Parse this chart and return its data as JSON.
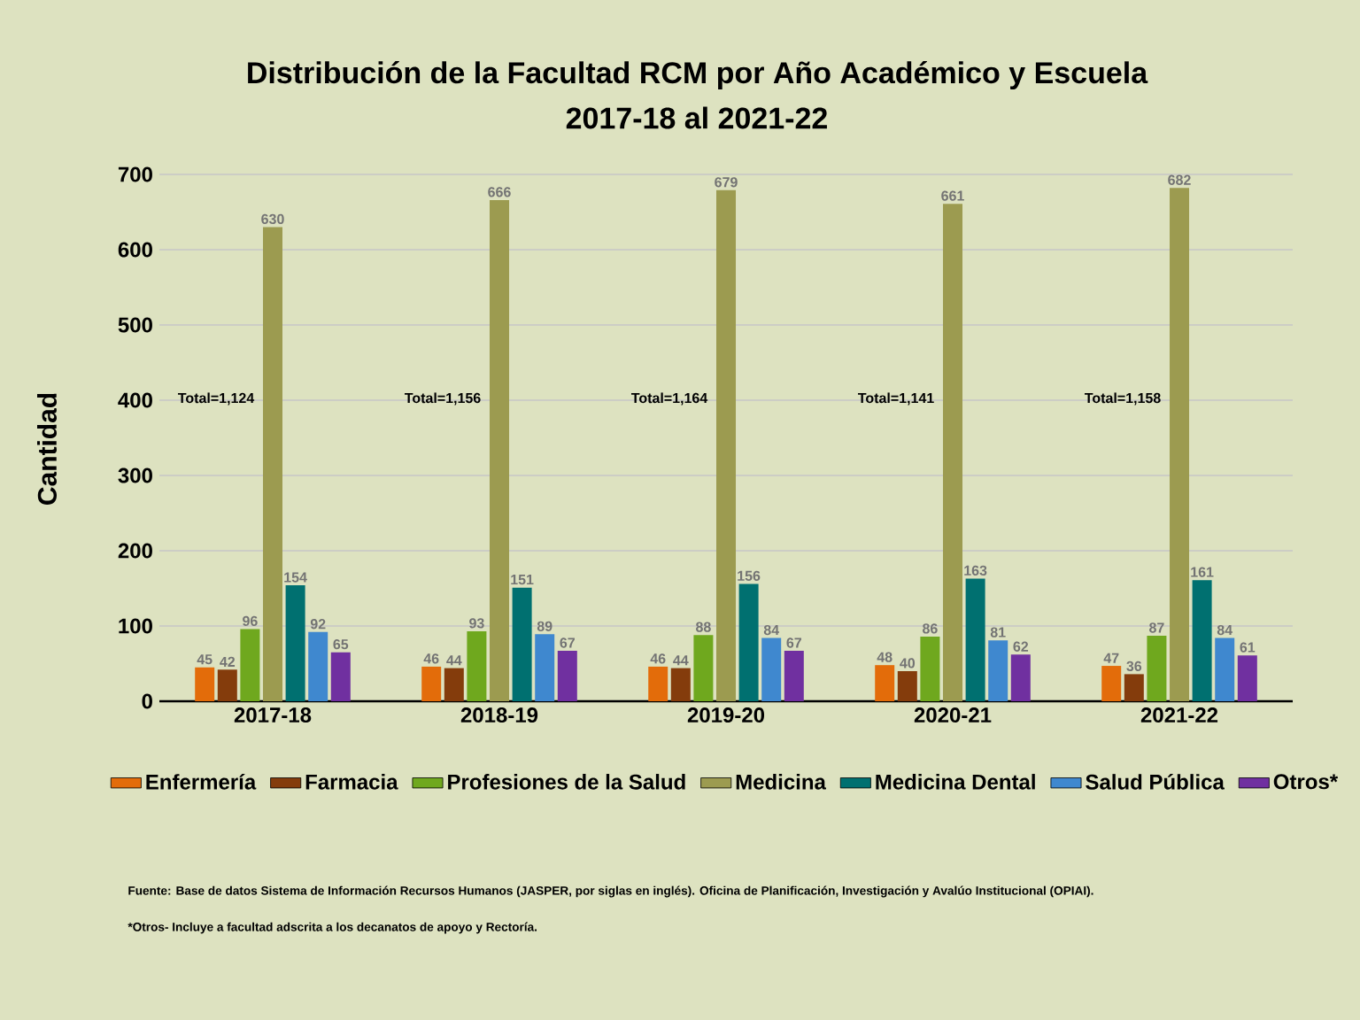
{
  "chart_data": {
    "type": "bar",
    "title": "Distribución de la Facultad RCM por Año Académico y Escuela",
    "subtitle": "2017-18 al 2021-22",
    "ylabel": "Cantidad",
    "categories": [
      "2017-18",
      "2018-19",
      "2019-20",
      "2020-21",
      "2021-22"
    ],
    "series": [
      {
        "name": "Enfermería",
        "color": "#e36c0a",
        "values": [
          45,
          46,
          46,
          48,
          47
        ]
      },
      {
        "name": "Farmacia",
        "color": "#843c0c",
        "values": [
          42,
          44,
          44,
          40,
          36
        ]
      },
      {
        "name": "Profesiones de la Salud",
        "color": "#6fa81e",
        "values": [
          96,
          93,
          88,
          86,
          87
        ]
      },
      {
        "name": "Medicina",
        "color": "#9c9b50",
        "values": [
          630,
          666,
          679,
          661,
          682
        ]
      },
      {
        "name": "Medicina Dental",
        "color": "#007070",
        "values": [
          154,
          151,
          156,
          163,
          161
        ]
      },
      {
        "name": "Salud Pública",
        "color": "#3f88cf",
        "values": [
          92,
          89,
          84,
          81,
          84
        ]
      },
      {
        "name": "Otros*",
        "color": "#7030a0",
        "values": [
          65,
          67,
          67,
          62,
          61
        ]
      }
    ],
    "ylim": [
      0,
      700
    ],
    "yticks": [
      0,
      100,
      200,
      300,
      400,
      500,
      600,
      700
    ],
    "grid": "y",
    "legend": "bottom",
    "data_labels": true,
    "annotations": [
      "Total=1,124",
      "Total=1,156",
      "Total=1,164",
      "Total=1,141",
      "Total=1,158",
      "Fuente: Base de datos  Sistema de Información Recursos Humanos (JASPER, por siglas en inglés). Oficina de Planificación, Investigación y Avalúo Institucional (OPIAI).",
      "*Otros- Incluye a facultad adscrita a los decanatos de apoyo  y Rectoría."
    ]
  }
}
